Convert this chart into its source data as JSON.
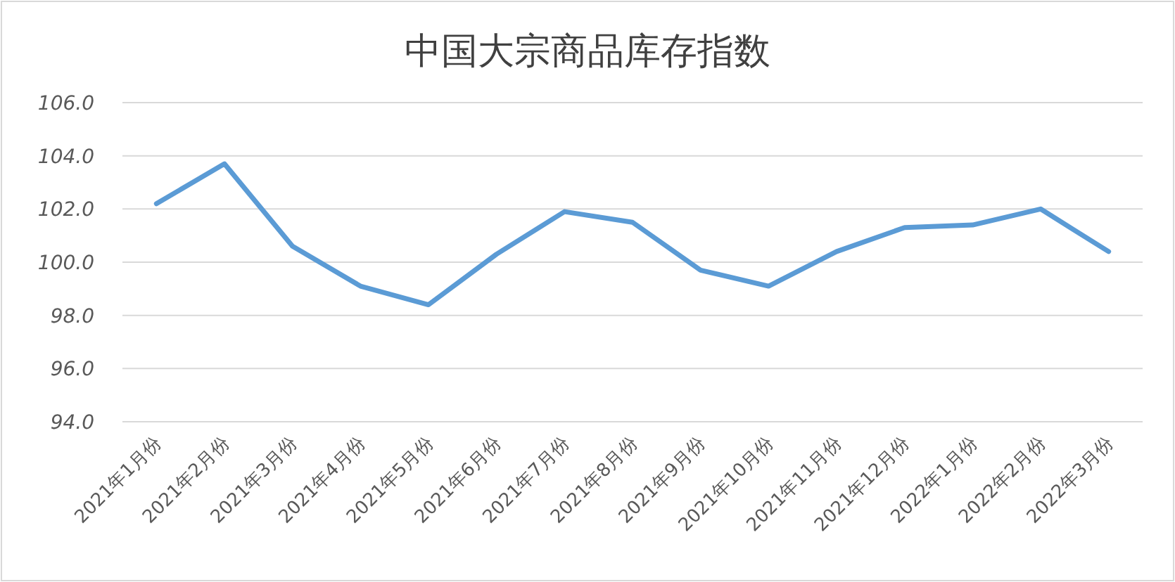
{
  "chart_data": {
    "type": "line",
    "title": "中国大宗商品库存指数",
    "categories": [
      "2021年1月份",
      "2021年2月份",
      "2021年3月份",
      "2021年4月份",
      "2021年5月份",
      "2021年6月份",
      "2021年7月份",
      "2021年8月份",
      "2021年9月份",
      "2021年10月份",
      "2021年11月份",
      "2021年12月份",
      "2022年1月份",
      "2022年2月份",
      "2022年3月份"
    ],
    "series": [
      {
        "color": "#5b9bd5",
        "values": [
          102.2,
          103.7,
          100.6,
          99.1,
          98.4,
          100.3,
          101.9,
          101.5,
          99.7,
          99.1,
          100.4,
          101.3,
          101.4,
          102.0,
          100.4
        ]
      }
    ],
    "ylim": [
      94,
      106
    ],
    "yticks": [
      {
        "value": 94,
        "label": "94.0"
      },
      {
        "value": 96,
        "label": "96.0"
      },
      {
        "value": 98,
        "label": "98.0"
      },
      {
        "value": 100,
        "label": "100.0"
      },
      {
        "value": 102,
        "label": "102.0"
      },
      {
        "value": 104,
        "label": "104.0"
      },
      {
        "value": 106,
        "label": "106.0"
      }
    ],
    "grid": "y",
    "marker": "none",
    "line_style": "solid"
  }
}
